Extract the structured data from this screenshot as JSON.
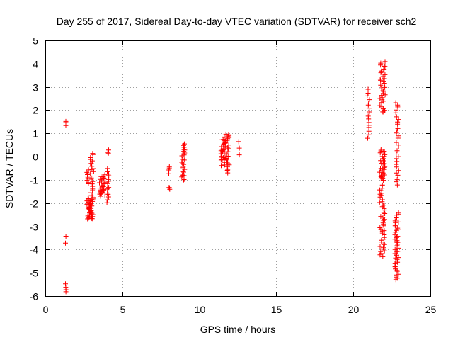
{
  "chart_data": {
    "type": "scatter",
    "title": "Day 255 of 2017, Sidereal Day-to-day VTEC variation (SDTVAR) for receiver sch2",
    "xlabel": "GPS time / hours",
    "ylabel": "SDTVAR / TECUs",
    "xlim": [
      0,
      25
    ],
    "ylim": [
      -6,
      5
    ],
    "xticks": [
      0,
      5,
      10,
      15,
      20,
      25
    ],
    "yticks": [
      -6,
      -5,
      -4,
      -3,
      -2,
      -1,
      0,
      1,
      2,
      3,
      4,
      5
    ],
    "xtick_labels": [
      "0",
      "5",
      "10",
      "15",
      "20",
      "25"
    ],
    "ytick_labels": [
      "-6",
      "-5",
      "-4",
      "-3",
      "-2",
      "-1",
      "0",
      "1",
      "2",
      "3",
      "4",
      "5"
    ],
    "grid": true,
    "marker": "plus",
    "color": "#ff0000",
    "clusters": [
      {
        "x0": 1.3,
        "x1": 1.35,
        "y0": 1.35,
        "y1": 1.5,
        "n": 3
      },
      {
        "x0": 1.3,
        "x1": 1.35,
        "y0": -3.75,
        "y1": -3.45,
        "n": 2
      },
      {
        "x0": 1.3,
        "x1": 1.35,
        "y0": -5.8,
        "y1": -5.5,
        "n": 4
      },
      {
        "x0": 2.7,
        "x1": 3.1,
        "y0": -2.7,
        "y1": -1.8,
        "n": 40
      },
      {
        "x0": 2.7,
        "x1": 2.85,
        "y0": -1.2,
        "y1": -0.6,
        "n": 10
      },
      {
        "x0": 2.9,
        "x1": 3.15,
        "y0": -1.8,
        "y1": 0.15,
        "n": 25
      },
      {
        "x0": 3.5,
        "x1": 3.9,
        "y0": -1.7,
        "y1": -0.8,
        "n": 35
      },
      {
        "x0": 4.0,
        "x1": 4.15,
        "y0": -2.0,
        "y1": -0.5,
        "n": 14
      },
      {
        "x0": 4.05,
        "x1": 4.15,
        "y0": 0.15,
        "y1": 0.25,
        "n": 3
      },
      {
        "x0": 8.0,
        "x1": 8.1,
        "y0": -0.7,
        "y1": -0.4,
        "n": 4
      },
      {
        "x0": 8.0,
        "x1": 8.1,
        "y0": -1.4,
        "y1": -1.3,
        "n": 3
      },
      {
        "x0": 8.85,
        "x1": 9.05,
        "y0": -1.05,
        "y1": 0.55,
        "n": 24
      },
      {
        "x0": 11.4,
        "x1": 11.95,
        "y0": -0.4,
        "y1": 0.95,
        "n": 55
      },
      {
        "x0": 11.8,
        "x1": 11.95,
        "y0": -0.7,
        "y1": -0.3,
        "n": 6
      },
      {
        "x0": 12.55,
        "x1": 12.6,
        "y0": 0.1,
        "y1": 0.65,
        "n": 3
      },
      {
        "x0": 20.9,
        "x1": 21.05,
        "y0": 0.8,
        "y1": 2.9,
        "n": 16
      },
      {
        "x0": 21.7,
        "x1": 22.1,
        "y0": 1.9,
        "y1": 4.1,
        "n": 35
      },
      {
        "x0": 21.7,
        "x1": 22.05,
        "y0": -1.0,
        "y1": 0.3,
        "n": 35
      },
      {
        "x0": 21.7,
        "x1": 22.05,
        "y0": -4.3,
        "y1": -1.2,
        "n": 45
      },
      {
        "x0": 22.7,
        "x1": 22.95,
        "y0": -5.3,
        "y1": -2.4,
        "n": 45
      },
      {
        "x0": 22.75,
        "x1": 22.95,
        "y0": -1.2,
        "y1": 2.35,
        "n": 30
      }
    ]
  }
}
